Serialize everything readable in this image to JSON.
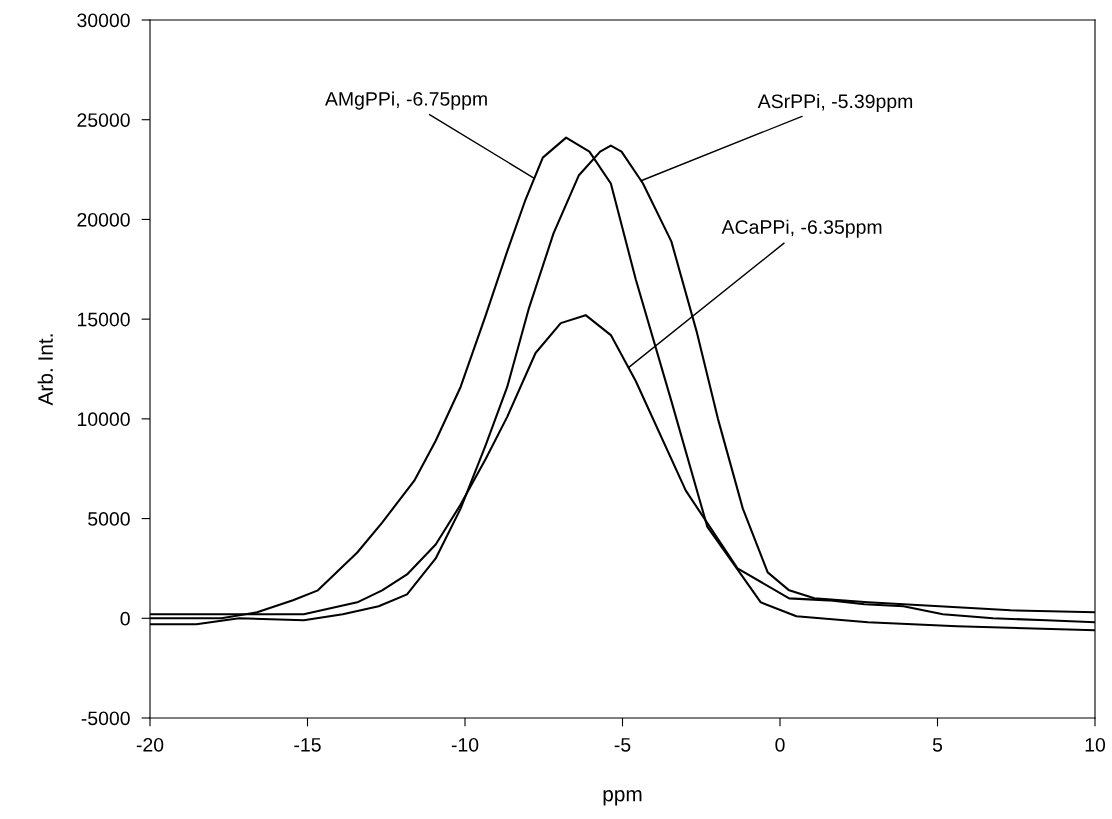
{
  "chart_data": {
    "type": "line",
    "xlabel": "ppm",
    "ylabel": "Arb. Int.",
    "xlim": [
      -20,
      10
    ],
    "xticks": [
      -20,
      -15,
      -10,
      -5,
      0,
      5,
      10
    ],
    "ylim": [
      -5000,
      30000
    ],
    "yticks": [
      -5000,
      0,
      5000,
      10000,
      15000,
      20000,
      25000,
      30000
    ],
    "grid": false,
    "legend": false,
    "line_style": "solid",
    "marker": "none",
    "series": [
      {
        "color": "#000000",
        "x": [
          -20,
          -17.73,
          -16.6,
          -15.46,
          -14.67,
          -13.42,
          -12.63,
          -11.61,
          -10.93,
          -10.14,
          -9.34,
          -8.66,
          -8.1,
          -7.53,
          -6.79,
          -6.05,
          -5.37,
          -4.58,
          -3.45,
          -2.31,
          -0.61,
          0.52,
          2.79,
          5.62,
          10
        ],
        "values": [
          0,
          0,
          300,
          900,
          1400,
          3300,
          4800,
          6900,
          8900,
          11600,
          15200,
          18400,
          20900,
          23100,
          24100,
          23400,
          21800,
          17000,
          10900,
          4600,
          800,
          100,
          -200,
          -400,
          -600
        ]
      },
      {
        "color": "#000000",
        "x": [
          -20,
          -18.53,
          -17.17,
          -15.12,
          -13.88,
          -12.74,
          -11.84,
          -10.93,
          -10.14,
          -9.34,
          -8.66,
          -7.98,
          -7.19,
          -6.39,
          -5.71,
          -5.37,
          -5.03,
          -4.35,
          -3.45,
          -2.65,
          -1.97,
          -1.18,
          -0.39,
          0.29,
          1.09,
          2.79,
          5.06,
          7.32,
          10
        ],
        "values": [
          -300,
          -300,
          0,
          -100,
          200,
          600,
          1200,
          3000,
          5500,
          8700,
          11600,
          15500,
          19300,
          22200,
          23400,
          23700,
          23400,
          21800,
          18900,
          14400,
          10000,
          5500,
          2300,
          1400,
          1000,
          800,
          600,
          400,
          300
        ]
      },
      {
        "color": "#000000",
        "x": [
          -20,
          -15.12,
          -13.42,
          -12.63,
          -11.84,
          -10.93,
          -10.14,
          -9.34,
          -8.66,
          -7.76,
          -6.96,
          -6.17,
          -5.37,
          -4.58,
          -2.99,
          -1.35,
          0.29,
          1.54,
          2.68,
          3.92,
          5.17,
          6.76,
          8.46,
          10
        ],
        "values": [
          200,
          200,
          800,
          1400,
          2200,
          3700,
          5700,
          8000,
          10100,
          13300,
          14800,
          15200,
          14200,
          11900,
          6400,
          2500,
          1000,
          900,
          700,
          600,
          200,
          0,
          -100,
          -200
        ]
      }
    ],
    "annotations": [
      {
        "text": "AMgPPi, -6.75ppm",
        "x": -7.8,
        "y": 22060
      },
      {
        "text": "ASrPPi, -5.39ppm",
        "x": -4.41,
        "y": 21940
      },
      {
        "text": "ACaPPi, -6.35ppm",
        "x": -4.81,
        "y": 12570
      }
    ]
  }
}
